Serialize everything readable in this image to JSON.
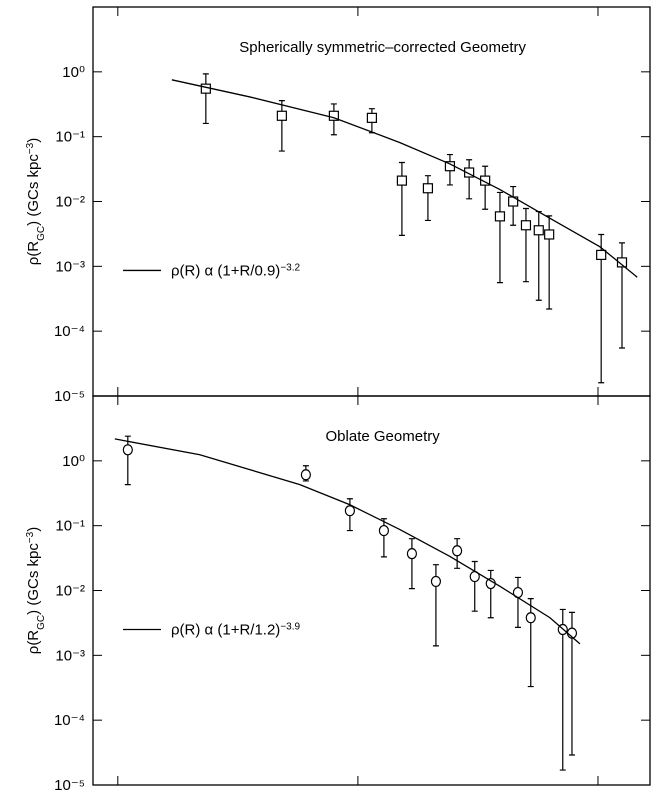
{
  "chart_data": [
    {
      "type": "scatter",
      "title": "Spherically symmetric–corrected Geometry",
      "y_label": [
        {
          "text": "ρ(R"
        },
        {
          "sub": "GC"
        },
        {
          "text": ") (GCs kpc"
        },
        {
          "sup": "−3"
        },
        {
          "text": ")"
        }
      ],
      "ylog": true,
      "ylim": [
        1e-05,
        10
      ],
      "yticks": [
        {
          "value": 1e-05,
          "label": "10⁻⁵"
        },
        {
          "value": 0.0001,
          "label": "10⁻⁴"
        },
        {
          "value": 0.001,
          "label": "10⁻³"
        },
        {
          "value": 0.01,
          "label": "10⁻²"
        },
        {
          "value": 0.1,
          "label": "10⁻¹"
        },
        {
          "value": 1,
          "label": "10⁰"
        }
      ],
      "xlim": [
        -3.1,
        66.5
      ],
      "xticks": [
        0,
        30,
        60
      ],
      "series": [
        {
          "marker": "square",
          "color": "#000000",
          "x": [
            11,
            20.5,
            27,
            31.75,
            35.5,
            38.75,
            41.5,
            43.9,
            45.9,
            47.75,
            49.4,
            51,
            52.6,
            53.9,
            60.4,
            63
          ],
          "values": [
            0.55,
            0.21,
            0.21,
            0.195,
            0.021,
            0.016,
            0.035,
            0.028,
            0.021,
            0.0059,
            0.01,
            0.0043,
            0.0036,
            0.0031,
            0.0015,
            0.00115
          ],
          "upper": [
            0.93,
            0.36,
            0.32,
            0.27,
            0.04,
            0.025,
            0.053,
            0.044,
            0.035,
            0.0138,
            0.017,
            0.0078,
            0.007,
            0.006,
            0.0031,
            0.0023
          ],
          "lower": [
            0.16,
            0.06,
            0.107,
            0.115,
            0.003,
            0.0051,
            0.018,
            0.011,
            0.0076,
            0.00056,
            0.0043,
            0.00058,
            0.0003,
            0.00022,
            1.6e-05,
            5.5e-05
          ]
        },
        {
          "marker": "line",
          "color": "#000000",
          "name": [
            {
              "text": "ρ(R) α (1+R/0.9)"
            },
            {
              "sup": "−3.2"
            }
          ],
          "x": [
            6.75,
            16.5,
            27,
            35.25,
            41.5,
            47.75,
            54,
            60.25,
            64.9
          ],
          "values": [
            0.753,
            0.41,
            0.196,
            0.081,
            0.038,
            0.0153,
            0.0055,
            0.002,
            0.00068
          ]
        }
      ]
    },
    {
      "type": "scatter",
      "title": "Oblate Geometry",
      "y_label": [
        {
          "text": "ρ(R"
        },
        {
          "sub": "GC"
        },
        {
          "text": ") (GCs kpc"
        },
        {
          "sup": "−3"
        },
        {
          "text": ")"
        }
      ],
      "ylog": true,
      "ylim": [
        1e-05,
        10
      ],
      "yticks": [
        {
          "value": 1e-05,
          "label": "10⁻⁵"
        },
        {
          "value": 0.0001,
          "label": "10⁻⁴"
        },
        {
          "value": 0.001,
          "label": "10⁻³"
        },
        {
          "value": 0.01,
          "label": "10⁻²"
        },
        {
          "value": 0.1,
          "label": "10⁻¹"
        },
        {
          "value": 1,
          "label": "10⁰"
        }
      ],
      "xlim": [
        -3.1,
        66.5
      ],
      "xticks": [
        0,
        30,
        60
      ],
      "series": [
        {
          "marker": "circle",
          "color": "#000000",
          "x": [
            1.25,
            23.5,
            29,
            33.25,
            36.75,
            39.75,
            42.4,
            44.6,
            46.6,
            50,
            51.6,
            55.6,
            56.75
          ],
          "values": [
            1.48,
            0.61,
            0.17,
            0.084,
            0.037,
            0.0138,
            0.041,
            0.0164,
            0.0128,
            0.0093,
            0.0038,
            0.0025,
            0.0022
          ],
          "upper": [
            2.4,
            0.84,
            0.26,
            0.128,
            0.063,
            0.025,
            0.063,
            0.028,
            0.0204,
            0.0159,
            0.0075,
            0.0051,
            0.0046
          ],
          "lower": [
            0.43,
            0.49,
            0.084,
            0.033,
            0.0107,
            0.0014,
            0.022,
            0.0048,
            0.0038,
            0.0027,
            0.00033,
            1.7e-05,
            2.9e-05
          ]
        },
        {
          "marker": "line",
          "color": "#000000",
          "name": [
            {
              "text": "ρ(R) α (1+R/1.2)"
            },
            {
              "sup": "−3.9"
            }
          ],
          "x": [
            -0.375,
            10.25,
            22.75,
            29,
            35.25,
            41.5,
            47.75,
            54,
            57.75
          ],
          "values": [
            2.18,
            1.24,
            0.43,
            0.21,
            0.087,
            0.0335,
            0.0116,
            0.0038,
            0.0015
          ]
        }
      ]
    }
  ]
}
